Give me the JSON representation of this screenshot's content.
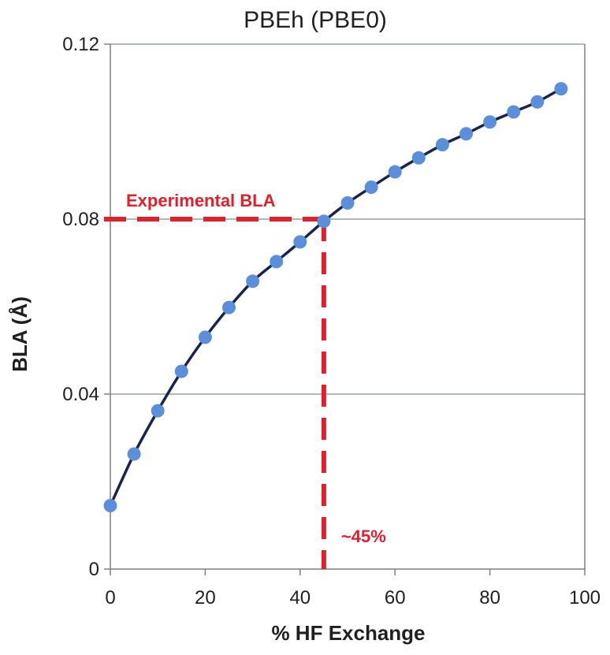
{
  "chart_data": {
    "type": "line",
    "title": "PBEh (PBE0)",
    "xlabel": "% HF Exchange",
    "ylabel": "BLA (Å)",
    "xlim": [
      0,
      100
    ],
    "ylim": [
      0,
      0.12
    ],
    "xticks": [
      0,
      20,
      40,
      60,
      80,
      100
    ],
    "yticks": [
      0,
      0.04,
      0.08,
      0.12
    ],
    "xtick_labels": [
      "0",
      "20",
      "40",
      "60",
      "80",
      "100"
    ],
    "ytick_labels": [
      "0",
      "0.04",
      "0.08",
      "0.12"
    ],
    "grid": "horizontal",
    "legend": "none",
    "series": [
      {
        "x": [
          0,
          5,
          10,
          15,
          20,
          25,
          30,
          35,
          40,
          45,
          50,
          55,
          60,
          65,
          70,
          75,
          80,
          85,
          90,
          95
        ],
        "y": [
          0.0145,
          0.0263,
          0.0362,
          0.0452,
          0.053,
          0.0598,
          0.0658,
          0.0703,
          0.0748,
          0.0795,
          0.0837,
          0.0873,
          0.0908,
          0.094,
          0.097,
          0.0995,
          0.1022,
          0.1045,
          0.1068,
          0.1098
        ],
        "line_color": "#17244f",
        "marker_color": "#5b8fdc"
      }
    ],
    "annotations": [
      {
        "text": "Experimental BLA",
        "y": 0.08,
        "color": "#e0202c"
      },
      {
        "text": "~45%",
        "x": 45,
        "color": "#e0202c"
      }
    ],
    "colors": {
      "annotation": "#e0202c",
      "line": "#17244f",
      "marker": "#5b8fdc",
      "grid": "#7f8c8d",
      "axis": "#7f7f7f"
    }
  }
}
